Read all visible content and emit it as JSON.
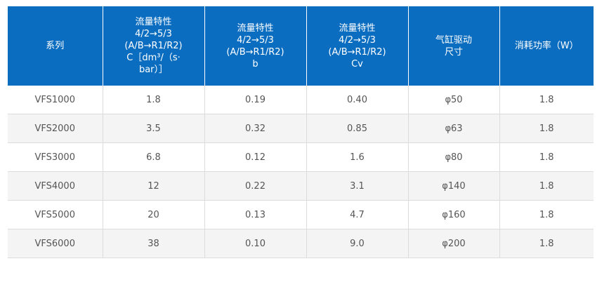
{
  "table": {
    "headers": [
      {
        "lines": [
          "系列"
        ]
      },
      {
        "lines": [
          "流量特性",
          "4/2→5/3",
          "(A/B→R1/R2)",
          "C［dm³/（s·",
          "bar）］"
        ]
      },
      {
        "lines": [
          "流量特性",
          "4/2→5/3",
          "(A/B→R1/R2)",
          "b"
        ]
      },
      {
        "lines": [
          "流量特性",
          "4/2→5/3",
          "(A/B→R1/R2)",
          "Cv"
        ]
      },
      {
        "lines": [
          "气缸驱动",
          "尺寸"
        ]
      },
      {
        "lines": [
          "消耗功率（W）"
        ]
      }
    ],
    "rows": [
      [
        "VFS1000",
        "1.8",
        "0.19",
        "0.40",
        "φ50",
        "1.8"
      ],
      [
        "VFS2000",
        "3.5",
        "0.32",
        "0.85",
        "φ63",
        "1.8"
      ],
      [
        "VFS3000",
        "6.8",
        "0.12",
        "1.6",
        "φ80",
        "1.8"
      ],
      [
        "VFS4000",
        "12",
        "0.22",
        "3.1",
        "φ140",
        "1.8"
      ],
      [
        "VFS5000",
        "20",
        "0.13",
        "4.7",
        "φ160",
        "1.8"
      ],
      [
        "VFS6000",
        "38",
        "0.10",
        "9.0",
        "φ200",
        "1.8"
      ]
    ]
  },
  "colors": {
    "header_bg": "#0b6dc0",
    "header_text": "#ffffff",
    "stripe": "#f4f4f4",
    "border": "#dcdcdc"
  }
}
